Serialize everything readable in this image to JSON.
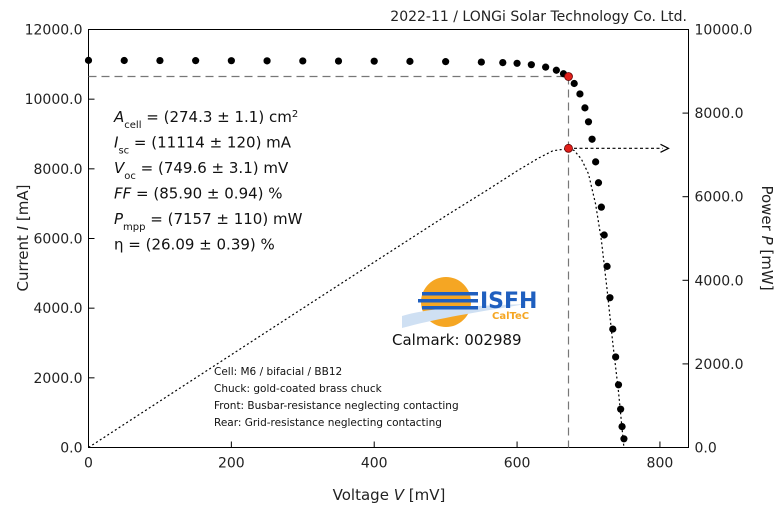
{
  "header": {
    "text": "2022-11 / LONGi Solar Technology Co. Ltd."
  },
  "chart_data": {
    "type": "scatter",
    "xlabel_main": "Voltage ",
    "xlabel_var": "V",
    "xlabel_unit": " [mV]",
    "ylabel_main": "Current ",
    "ylabel_var": "I",
    "ylabel_unit": " [mA]",
    "y2label_main": "Power ",
    "y2label_var": "P",
    "y2label_unit": " [mW]",
    "xlim": [
      0,
      840
    ],
    "ylim": [
      0,
      12000
    ],
    "y2lim": [
      0,
      10000
    ],
    "xticks": [
      "0",
      "200",
      "400",
      "600",
      "800"
    ],
    "yticks": [
      "0.0",
      "2000.0",
      "4000.0",
      "6000.0",
      "8000.0",
      "10000.0",
      "12000.0"
    ],
    "y2ticks": [
      "0.0",
      "2000.0",
      "4000.0",
      "6000.0",
      "8000.0",
      "10000.0"
    ],
    "grid": false,
    "series": [
      {
        "kind": "iv-curve",
        "marker": "filled-circle",
        "color": "#000000",
        "x": [
          0,
          50,
          100,
          150,
          200,
          250,
          300,
          350,
          400,
          450,
          500,
          550,
          580,
          600,
          620,
          640,
          655,
          665,
          672,
          680,
          688,
          695,
          700,
          705,
          710,
          714,
          718,
          722,
          726,
          730,
          734,
          738,
          742,
          745,
          747,
          749.6
        ],
        "y": [
          11114,
          11110,
          11108,
          11106,
          11104,
          11100,
          11098,
          11094,
          11090,
          11085,
          11078,
          11065,
          11050,
          11030,
          10990,
          10920,
          10830,
          10730,
          10650,
          10450,
          10150,
          9750,
          9350,
          8850,
          8200,
          7600,
          6900,
          6100,
          5200,
          4300,
          3400,
          2600,
          1800,
          1100,
          600,
          250
        ]
      },
      {
        "kind": "power-curve",
        "marker": "dotted-line",
        "color": "#000000",
        "x": [
          0,
          100,
          200,
          300,
          400,
          500,
          560,
          600,
          630,
          650,
          665,
          672,
          680,
          690,
          700,
          710,
          718,
          726,
          734,
          742,
          749.6
        ],
        "y": [
          0,
          1111,
          2221,
          3329,
          4436,
          5539,
          6178,
          6618,
          6924,
          7098,
          7135,
          7157,
          7106,
          6900,
          6545,
          5822,
          4954,
          3775,
          2496,
          1336,
          0
        ]
      }
    ],
    "mpp": {
      "voltage": 672,
      "current": 10650,
      "power": 7157
    },
    "annotations": {
      "params": [
        {
          "sym": "A",
          "sub": "cell",
          "rest": " = (274.3 ± 1.1) cm",
          "sup": "2"
        },
        {
          "sym": "I",
          "sub": "sc",
          "rest": " = (11114 ± 120) mA",
          "sup": ""
        },
        {
          "sym": "V",
          "sub": "oc",
          "rest": " = (749.6 ± 3.1) mV",
          "sup": ""
        },
        {
          "sym": "FF",
          "sub": "",
          "rest": " = (85.90 ± 0.94) %",
          "sup": ""
        },
        {
          "sym": "P",
          "sub": "mpp",
          "rest": " = (7157 ± 110) mW",
          "sup": ""
        },
        {
          "sym": "η",
          "sub": "",
          "rest": " = (26.09 ± 0.39) %",
          "sup": "",
          "upright": true
        }
      ],
      "notes": [
        "Cell: M6 / bifacial / BB12",
        "Chuck: gold-coated brass chuck",
        "Front: Busbar-resistance neglecting contacting",
        "Rear: Grid-resistance neglecting contacting"
      ],
      "calmark": "Calmark: 002989"
    },
    "logo": {
      "line1": "ISFH",
      "line2": "CalTeC",
      "accent": "#f5a623",
      "blue": "#1f5fbf"
    }
  }
}
